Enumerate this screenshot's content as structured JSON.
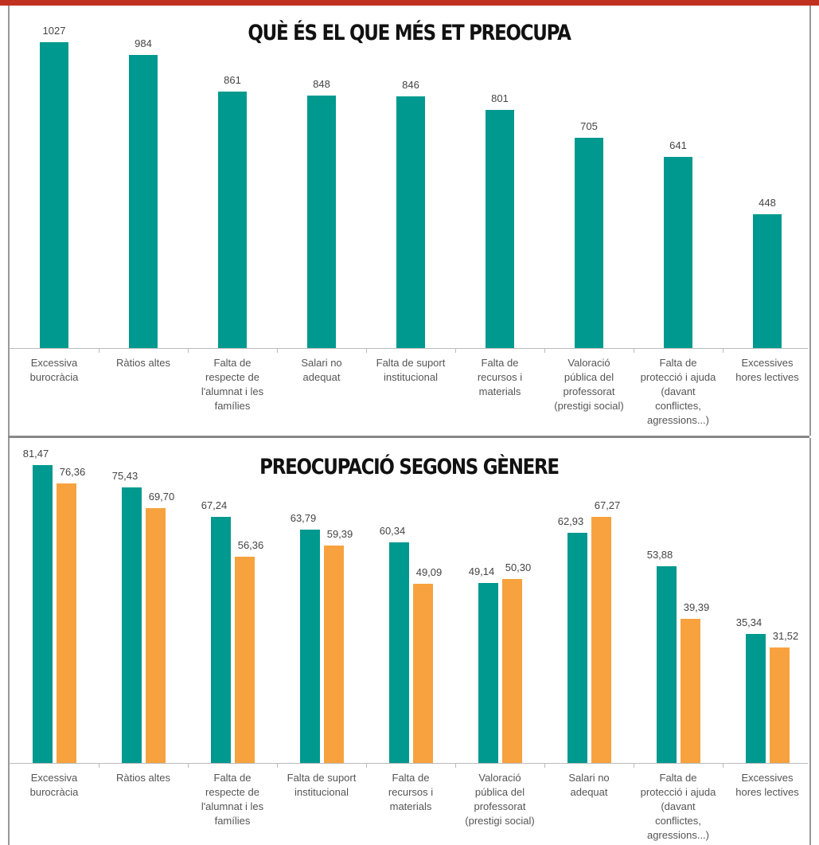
{
  "chart_data": [
    {
      "type": "bar",
      "title": "QUÈ ÉS EL QUE MÉS ET PREOCUPA",
      "categories": [
        "Excessiva burocràcia",
        "Ràtios altes",
        "Falta de respecte de l'alumnat i les famílies",
        "Salari no adequat",
        "Falta de suport institucional",
        "Falta de recursos i materials",
        "Valoració pública del professorat (prestigi social)",
        "Falta de protecció i ajuda (davant conflictes, agressions...)",
        "Excessives hores lectives"
      ],
      "values": [
        1027,
        984,
        861,
        848,
        846,
        801,
        705,
        641,
        448
      ],
      "color": "#00998f"
    },
    {
      "type": "grouped_bar",
      "title": "PREOCUPACIÓ SEGONS GÈNERE",
      "categories": [
        "Excessiva burocràcia",
        "Ràtios altes",
        "Falta de respecte de l'alumnat i les famílies",
        "Falta de suport institucional",
        "Falta de recursos i materials",
        "Valoració pública del professorat (prestigi social)",
        "Salari no adequat",
        "Falta de protecció i ajuda (davant conflictes, agressions...)",
        "Excessives hores lectives"
      ],
      "series": [
        {
          "color": "#00998f",
          "values": [
            81.47,
            75.43,
            67.24,
            63.79,
            60.34,
            49.14,
            62.93,
            53.88,
            35.34
          ],
          "value_labels": [
            "81,47",
            "75,43",
            "67,24",
            "63,79",
            "60,34",
            "49,14",
            "62,93",
            "53,88",
            "35,34"
          ]
        },
        {
          "color": "#f7a23e",
          "values": [
            76.36,
            69.7,
            56.36,
            59.39,
            49.09,
            50.3,
            67.27,
            39.39,
            31.52
          ],
          "value_labels": [
            "76,36",
            "69,70",
            "56,36",
            "59,39",
            "49,09",
            "50,30",
            "67,27",
            "39,39",
            "31,52"
          ]
        }
      ]
    }
  ]
}
